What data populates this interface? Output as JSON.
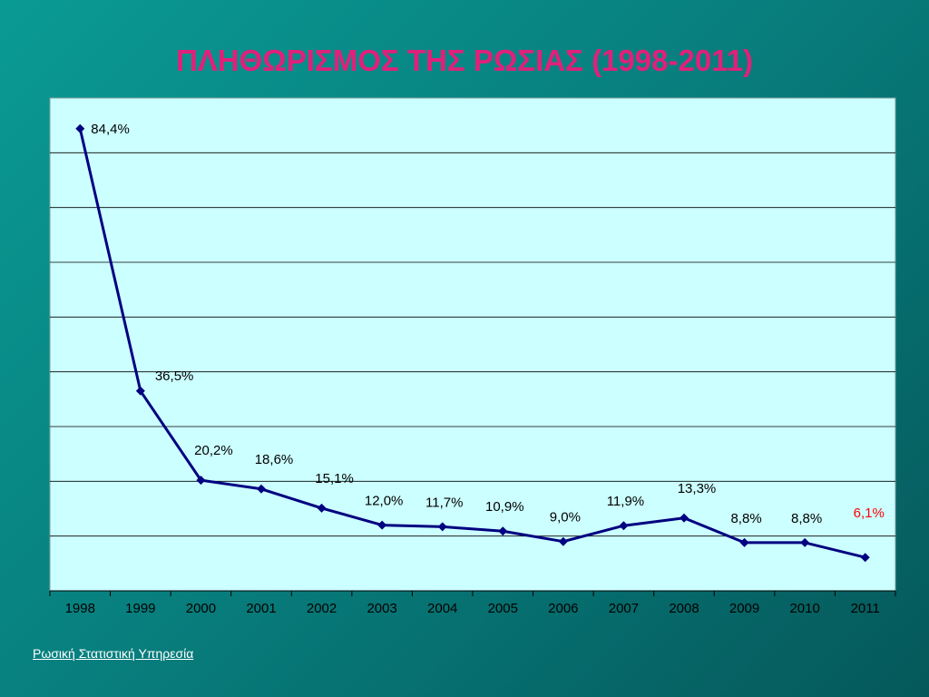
{
  "title": "ΠΛΗΘΩΡΙΣΜΟΣ ΤΗΣ ΡΩΣΙΑΣ (1998-2011)",
  "source": "Ρωσική Στατιστική Υπηρεσία",
  "colors": {
    "title": "#e0207a",
    "plot_background": "#ccffff",
    "line": "#000080",
    "highlight_label": "#ff0000"
  },
  "chart_data": {
    "type": "line",
    "title": "ΠΛΗΘΩΡΙΣΜΟΣ ΤΗΣ ΡΩΣΙΑΣ (1998-2011)",
    "xlabel": "",
    "ylabel": "",
    "categories": [
      "1998",
      "1999",
      "2000",
      "2001",
      "2002",
      "2003",
      "2004",
      "2005",
      "2006",
      "2007",
      "2008",
      "2009",
      "2010",
      "2011"
    ],
    "series": [
      {
        "values": [
          84.4,
          36.5,
          20.2,
          18.6,
          15.1,
          12.0,
          11.7,
          10.9,
          9.0,
          11.9,
          13.3,
          8.8,
          8.8,
          6.1
        ],
        "labels": [
          "84,4%",
          "36,5%",
          "20,2%",
          "18,6%",
          "15,1%",
          "12,0%",
          "11,7%",
          "10,9%",
          "9,0%",
          "11,9%",
          "13,3%",
          "8,8%",
          "8,8%",
          "6,1%"
        ]
      }
    ],
    "highlighted_label_index": 13,
    "ylim": [
      0,
      90
    ],
    "y_gridline_step": 10,
    "y_tick_labels_shown": false,
    "grid": true,
    "legend": "none"
  }
}
